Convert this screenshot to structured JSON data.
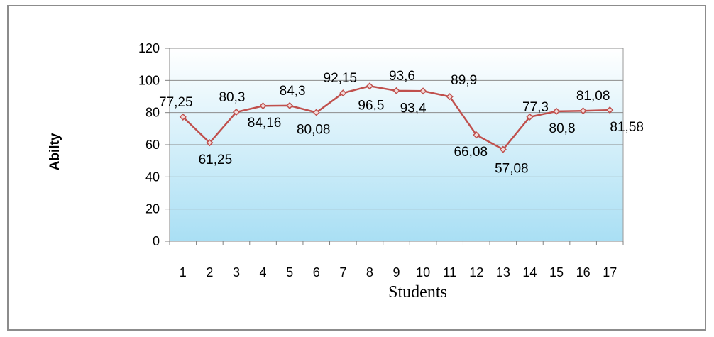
{
  "chart_data": {
    "type": "line",
    "title": "",
    "xlabel": "Students",
    "ylabel": "Abilty",
    "categories": [
      "1",
      "2",
      "3",
      "4",
      "5",
      "6",
      "7",
      "8",
      "9",
      "10",
      "11",
      "12",
      "13",
      "14",
      "15",
      "16",
      "17"
    ],
    "series": [
      {
        "values": [
          77.25,
          61.25,
          80.3,
          84.16,
          84.3,
          80.08,
          92.15,
          96.5,
          93.6,
          93.4,
          89.9,
          66.08,
          57.08,
          77.3,
          80.8,
          81.08,
          81.58
        ],
        "data_labels": [
          "77,25",
          "61,25",
          "80,3",
          "84,16",
          "84,3",
          "80,08",
          "92,15",
          "96,5",
          "93,6",
          "93,4",
          "89,9",
          "66,08",
          "57,08",
          "77,3",
          "80,8",
          "81,08",
          "81,58"
        ]
      }
    ],
    "ylim": [
      0,
      120
    ],
    "yticks": [
      0,
      20,
      40,
      60,
      80,
      100,
      120
    ],
    "grid": true,
    "colors": {
      "line": "#c0504d",
      "marker_fill": "#f2dcdb",
      "plot_bg_top": "#ffffff",
      "plot_bg_bottom": "#a9dff4",
      "grid": "#8c8c8c"
    }
  }
}
